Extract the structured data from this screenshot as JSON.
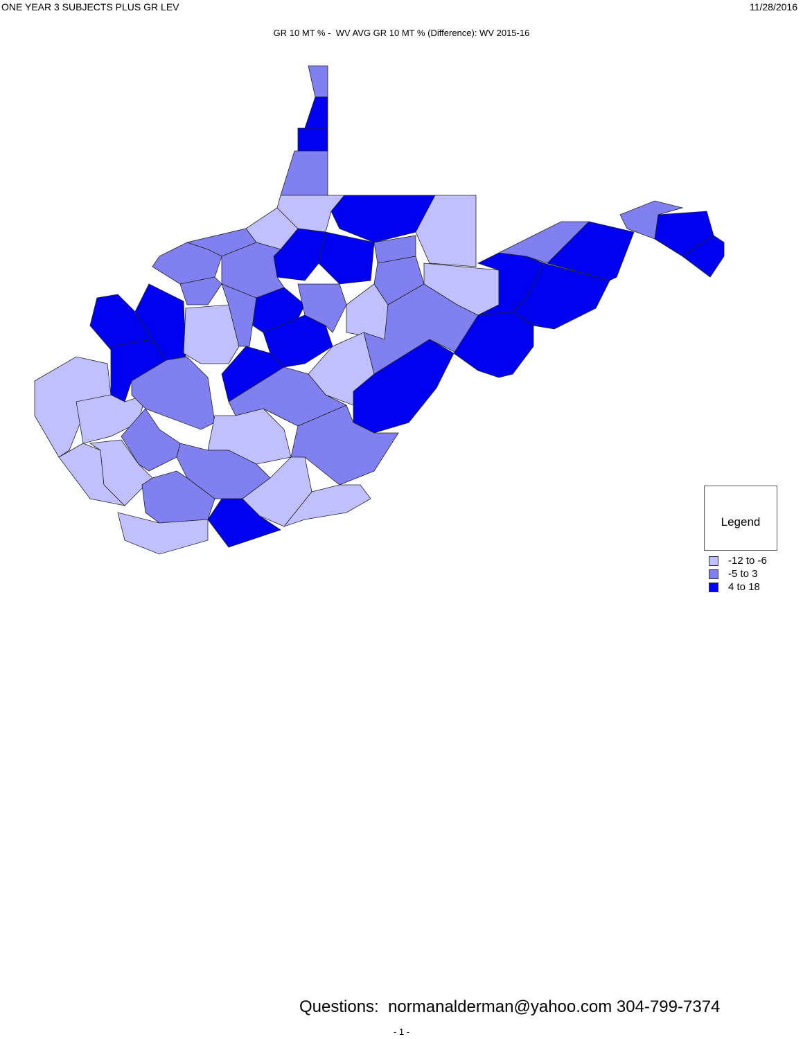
{
  "header": {
    "left": "ONE YEAR 3 SUBJECTS PLUS GR LEV",
    "right": "11/28/2016"
  },
  "title": "GR 10 MT % -  WV AVG GR 10 MT % (Difference): WV 2015-16",
  "legend": {
    "title": "Legend",
    "items": [
      {
        "label": "-12 to -6",
        "color": "#c0c0ff"
      },
      {
        "label": "-5 to 3",
        "color": "#8080f0"
      },
      {
        "label": "4 to 18",
        "color": "#0000f0"
      }
    ]
  },
  "footer": {
    "contact": "Questions:  normanalderman@yahoo.com 304-799-7374",
    "page": "- 1 -"
  }
}
